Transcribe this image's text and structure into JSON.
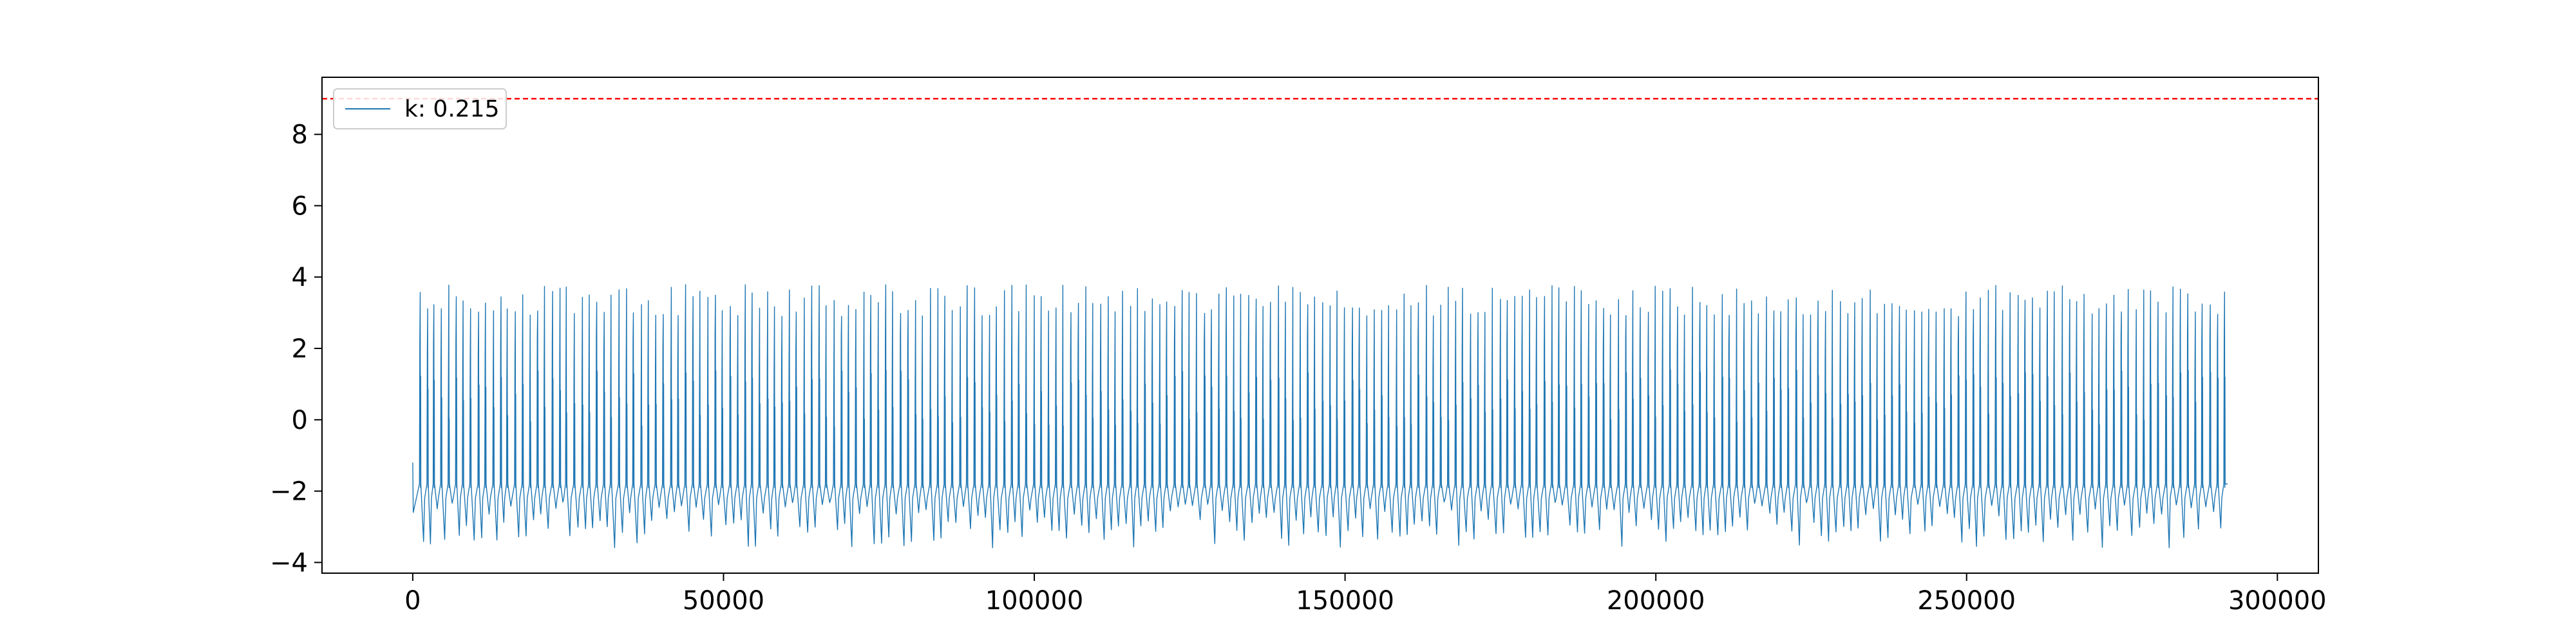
{
  "chart_data": {
    "type": "line",
    "title": "",
    "xlabel": "",
    "ylabel": "",
    "xlim": [
      -14600,
      306600
    ],
    "ylim": [
      -4.3,
      9.6
    ],
    "xticks": [
      0,
      50000,
      100000,
      150000,
      200000,
      250000,
      300000
    ],
    "xtick_labels": [
      "0",
      "50000",
      "100000",
      "150000",
      "200000",
      "250000",
      "300000"
    ],
    "yticks": [
      -4,
      -2,
      0,
      2,
      4,
      6,
      8
    ],
    "ytick_labels": [
      "−4",
      "−2",
      "0",
      "2",
      "4",
      "6",
      "8"
    ],
    "grid": false,
    "legend": {
      "position": "upper-left",
      "entries": [
        "k: 0.215"
      ]
    },
    "threshold": {
      "value": 9.0,
      "color": "#ff0000",
      "style": "dashed"
    },
    "series": [
      {
        "name": "k: 0.215",
        "color": "#1f77b4",
        "x_range": [
          0,
          292000
        ],
        "summary": {
          "max": 3.8,
          "min": -3.6,
          "plateau_low": -1.8,
          "plateau_high": 3.3
        },
        "peak_x": [
          1200,
          2400,
          3400,
          4600,
          5800,
          7000,
          8100,
          9300,
          10600,
          11700,
          13000,
          14200,
          15200,
          16500,
          17700,
          18900,
          20100,
          21200,
          22500,
          23700,
          24700,
          26000,
          27300,
          28400,
          29600,
          30800,
          31900,
          33200,
          34400,
          35500,
          36800,
          37900,
          39100,
          40300,
          41600,
          42700,
          43900,
          45100,
          46200,
          47500,
          48700,
          49800,
          51100,
          52300,
          53500,
          54600,
          55800,
          57100,
          58200,
          59400,
          60600,
          61700,
          63000,
          64200,
          65400,
          66500,
          67800,
          69000,
          70100,
          71300,
          72600,
          73700,
          74900,
          76100,
          77200,
          78500,
          79700,
          80900,
          82000,
          83300,
          84500,
          85600,
          86800,
          88100,
          89200,
          90400,
          91600,
          92800,
          93900,
          95200,
          96400,
          97500,
          98700,
          100000,
          101100,
          102300,
          103500,
          104600,
          105900,
          107100,
          108300,
          109400,
          110700,
          111900,
          113000,
          114200,
          115500,
          116600,
          117800,
          119000,
          120200,
          121300,
          122600,
          123800,
          124900,
          126100,
          127400,
          128500,
          129700,
          130900,
          132100,
          133200,
          134500,
          135700,
          136800,
          138000,
          139300,
          140400,
          141600,
          142800,
          144000,
          145100,
          146400,
          147600,
          148700,
          149900,
          151200,
          152300,
          153500,
          154700,
          155900,
          157000,
          158300,
          159500,
          160600,
          161800,
          163100,
          164200,
          165400,
          166600,
          167800,
          168900,
          170200,
          171400,
          172500,
          173700,
          175000,
          176100,
          177300,
          178500,
          179700,
          180800,
          182100,
          183300,
          184400,
          185600,
          186900,
          188000,
          189200,
          190400,
          191600,
          192700,
          194000,
          195200,
          196300,
          197500,
          198800,
          199900,
          201100,
          202300,
          203500,
          204600,
          205900,
          207100,
          208200,
          209400,
          210700,
          211800,
          213000,
          214200,
          215400,
          216500,
          217800,
          219000,
          220100,
          221300,
          222600,
          223700,
          224900,
          226100,
          227300,
          228400,
          229700,
          230900,
          232000,
          233200,
          234500,
          235600,
          236800,
          238000,
          239200,
          240300,
          241600,
          242800,
          243900,
          245100,
          246400,
          247500,
          248700,
          249900,
          251100,
          252200,
          253500,
          254700,
          255800,
          257000,
          258300,
          259400,
          260600,
          261800,
          263000,
          264100,
          265400,
          266600,
          267700,
          268900,
          270200,
          271300,
          272500,
          273700,
          274900,
          276000,
          277300,
          278500,
          279600,
          280800,
          282100,
          283200,
          284400,
          285600,
          286800,
          287900,
          289200,
          290400,
          291500
        ]
      }
    ]
  }
}
